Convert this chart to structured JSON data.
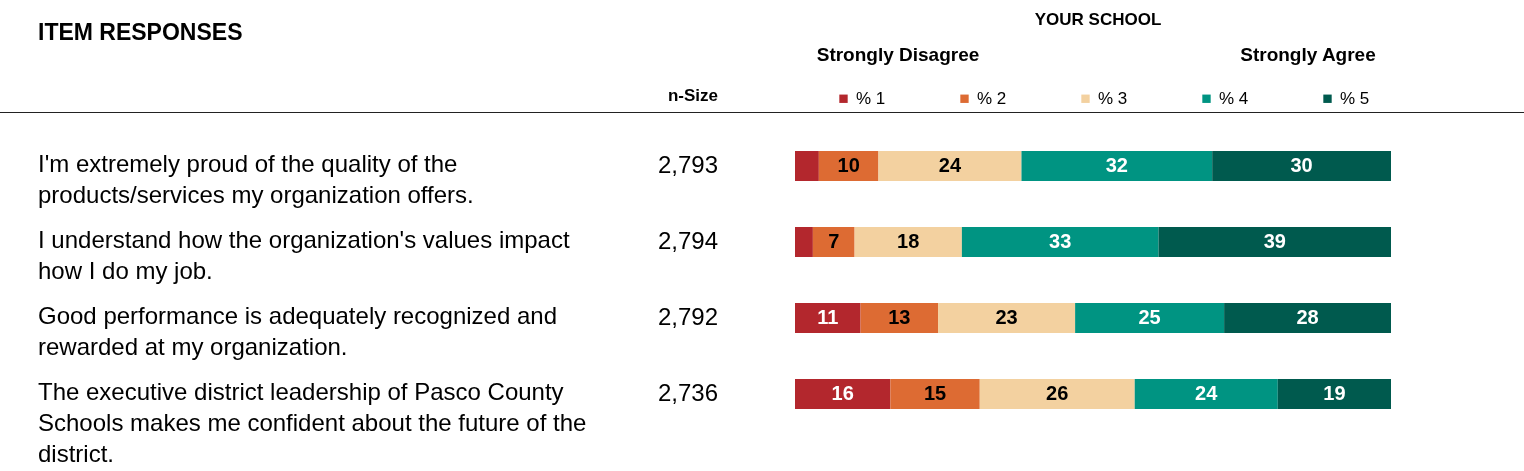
{
  "chart_data": {
    "type": "bar",
    "orientation": "horizontal",
    "stacked": true,
    "title": "ITEM RESPONSES",
    "categories": [
      "I'm extremely proud of the quality of the products/services my organization offers.",
      "I understand how the organization's values impact how I do my job.",
      "Good performance is adequately recognized and rewarded at my organization.",
      "The executive district leadership of Pasco County Schools makes me confident about the future of the district."
    ],
    "series": [
      {
        "name": "% 1",
        "color": "#b3272d",
        "values": [
          4,
          3,
          11,
          16
        ],
        "value_labels": [
          null,
          null,
          "11",
          "16"
        ]
      },
      {
        "name": "% 2",
        "color": "#dd6b33",
        "values": [
          10,
          7,
          13,
          15
        ],
        "value_labels": [
          "10",
          "7",
          "13",
          "15"
        ]
      },
      {
        "name": "% 3",
        "color": "#f3d1a0",
        "values": [
          24,
          18,
          23,
          26
        ],
        "value_labels": [
          "24",
          "18",
          "23",
          "26"
        ]
      },
      {
        "name": "% 4",
        "color": "#009482",
        "values": [
          32,
          33,
          25,
          24
        ],
        "value_labels": [
          "32",
          "33",
          "25",
          "24"
        ]
      },
      {
        "name": "% 5",
        "color": "#005a4e",
        "values": [
          30,
          39,
          28,
          19
        ],
        "value_labels": [
          "30",
          "39",
          "28",
          "19"
        ]
      }
    ],
    "xlim": [
      0,
      100
    ],
    "tick_labels": "y",
    "legend": "top",
    "annotations": [
      "YOUR SCHOOL",
      "Strongly Disagree",
      "Strongly Agree",
      "n-Size",
      "2,793",
      "2,794",
      "2,792",
      "2,736"
    ]
  }
}
